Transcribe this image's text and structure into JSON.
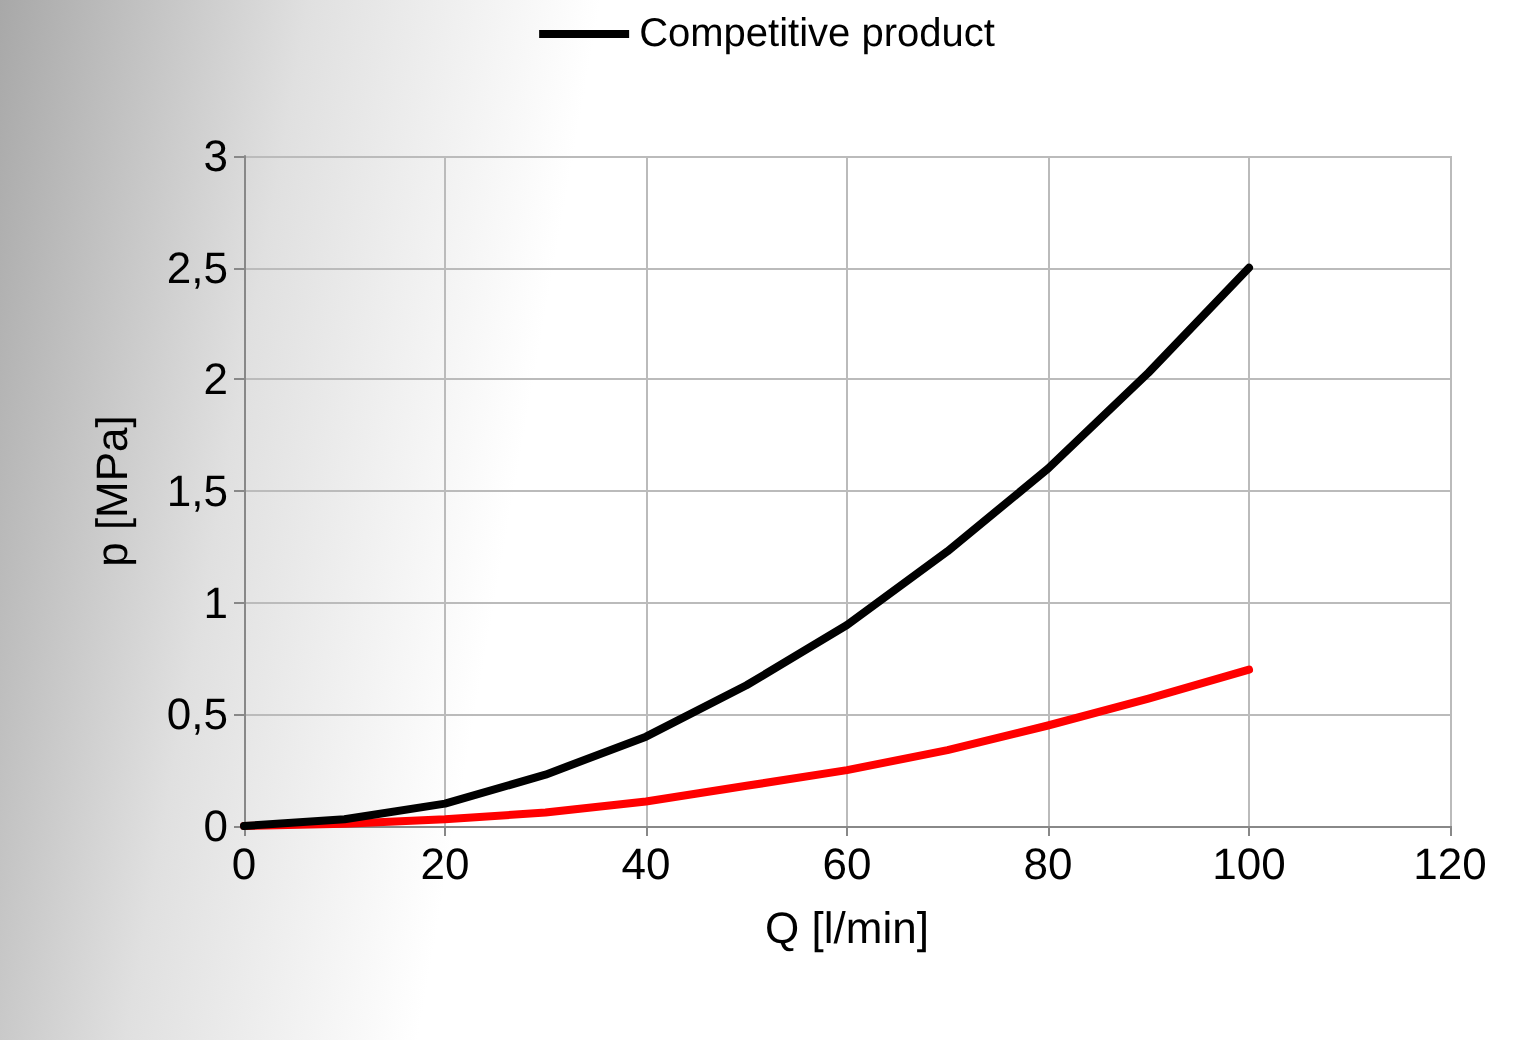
{
  "chart_data": {
    "type": "line",
    "xlabel": "Q [l/min]",
    "ylabel": "p [MPa]",
    "x": [
      0,
      10,
      20,
      30,
      40,
      50,
      60,
      70,
      80,
      90,
      100
    ],
    "series": [
      {
        "color": "#ff0000",
        "values": [
          0,
          0.01,
          0.03,
          0.06,
          0.11,
          0.18,
          0.25,
          0.34,
          0.45,
          0.57,
          0.7
        ]
      },
      {
        "name": "Competitive product",
        "color": "#000000",
        "values": [
          0,
          0.03,
          0.1,
          0.23,
          0.4,
          0.63,
          0.9,
          1.23,
          1.6,
          2.03,
          2.5
        ]
      }
    ],
    "xlim": [
      0,
      120
    ],
    "xticks": [
      0,
      20,
      40,
      60,
      80,
      100,
      120
    ],
    "ylim": [
      0,
      3
    ],
    "yticks": [
      0,
      {
        "value": 0.5,
        "label": "0,5"
      },
      1,
      {
        "value": 1.5,
        "label": "1,5"
      },
      2,
      {
        "value": 2.5,
        "label": "2,5"
      },
      3
    ],
    "grid": true,
    "legend": "top",
    "marker": "none",
    "line_style": "solid"
  }
}
